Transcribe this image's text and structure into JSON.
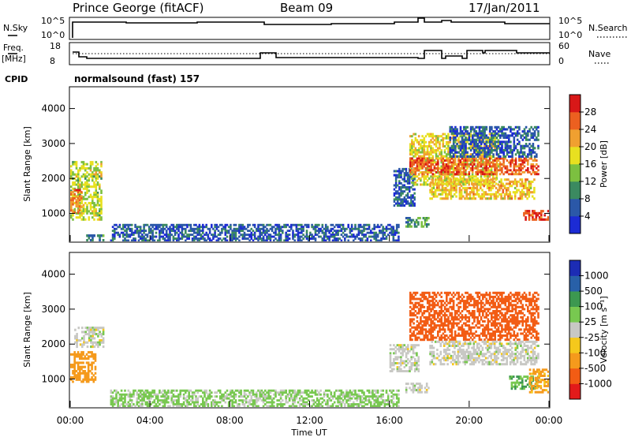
{
  "header": {
    "station": "Prince George (fitACF)",
    "beam": "Beam 09",
    "date": "17/Jan/2011"
  },
  "noise_panel": {
    "left_label": "N.Sky",
    "right_label": "N.Search",
    "left_ticks": [
      "10^5",
      "10^0"
    ],
    "right_ticks": [
      "10^5",
      "10^0"
    ]
  },
  "freq_panel": {
    "left_label_1": "Freq.",
    "left_label_2": "[MHz]",
    "right_label": "Nave",
    "left_ticks": [
      "18",
      "8"
    ],
    "right_ticks": [
      "60",
      "0"
    ]
  },
  "cpid": {
    "label": "CPID",
    "text": "normalsound (fast) 157"
  },
  "colorbars": {
    "power": {
      "label": "Power [dB]",
      "ticks": [
        "28",
        "24",
        "20",
        "16",
        "12",
        "8",
        "4"
      ]
    },
    "velocity": {
      "label": "Velocity [m s⁻¹]",
      "ticks": [
        "1000",
        "500",
        "100",
        "25",
        "-25",
        "-100",
        "-500",
        "-1000"
      ]
    }
  },
  "chart_data": [
    {
      "type": "heatmap",
      "name": "power",
      "ylabel": "Slant Range [km]",
      "xlabel": "",
      "ylim": [
        200,
        4600
      ],
      "yticks": [
        1000,
        2000,
        3000,
        4000
      ],
      "x_ticks": [
        "00:00",
        "04:00",
        "08:00",
        "12:00",
        "16:00",
        "20:00",
        "00:00"
      ],
      "xlim_hours": [
        0,
        24
      ],
      "colorbar": {
        "label": "Power [dB]",
        "range": [
          0,
          32
        ]
      },
      "regions": [
        {
          "t": [
            0.0,
            1.6
          ],
          "r": [
            800,
            2500
          ],
          "value": 16
        },
        {
          "t": [
            0.0,
            0.6
          ],
          "r": [
            1000,
            1700
          ],
          "value": 24
        },
        {
          "t": [
            0.8,
            1.7
          ],
          "r": [
            200,
            400
          ],
          "value": 8
        },
        {
          "t": [
            2.0,
            16.5
          ],
          "r": [
            200,
            700
          ],
          "value": 6
        },
        {
          "t": [
            16.2,
            17.3
          ],
          "r": [
            1200,
            2300
          ],
          "value": 6
        },
        {
          "t": [
            16.8,
            18.0
          ],
          "r": [
            600,
            900
          ],
          "value": 10
        },
        {
          "t": [
            17.0,
            21.5
          ],
          "r": [
            1800,
            3300
          ],
          "value": 18
        },
        {
          "t": [
            17.0,
            23.5
          ],
          "r": [
            2100,
            2600
          ],
          "value": 26
        },
        {
          "t": [
            18.0,
            23.3
          ],
          "r": [
            1400,
            2000
          ],
          "value": 20
        },
        {
          "t": [
            19.0,
            23.5
          ],
          "r": [
            2600,
            3500
          ],
          "value": 6
        },
        {
          "t": [
            22.7,
            24.0
          ],
          "r": [
            800,
            1100
          ],
          "value": 28
        }
      ]
    },
    {
      "type": "heatmap",
      "name": "velocity",
      "ylabel": "Slant Range [km]",
      "xlabel": "Time UT",
      "ylim": [
        200,
        4600
      ],
      "yticks": [
        1000,
        2000,
        3000,
        4000
      ],
      "x_ticks": [
        "00:00",
        "04:00",
        "08:00",
        "12:00",
        "16:00",
        "20:00",
        "00:00"
      ],
      "xlim_hours": [
        0,
        24
      ],
      "colorbar": {
        "label": "Velocity [m s⁻¹]",
        "range": [
          -1000,
          1000
        ]
      },
      "regions": [
        {
          "t": [
            0.0,
            1.3
          ],
          "r": [
            900,
            1800
          ],
          "value": -150
        },
        {
          "t": [
            0.2,
            1.7
          ],
          "r": [
            1900,
            2500
          ],
          "value": 0
        },
        {
          "t": [
            2.0,
            16.5
          ],
          "r": [
            200,
            700
          ],
          "value": 40
        },
        {
          "t": [
            16.0,
            17.5
          ],
          "r": [
            1200,
            2000
          ],
          "value": 0
        },
        {
          "t": [
            16.8,
            18.0
          ],
          "r": [
            600,
            900
          ],
          "value": 0
        },
        {
          "t": [
            17.0,
            23.5
          ],
          "r": [
            2100,
            3500
          ],
          "value": -700
        },
        {
          "t": [
            18.0,
            23.5
          ],
          "r": [
            1400,
            2100
          ],
          "value": 0
        },
        {
          "t": [
            22.0,
            23.5
          ],
          "r": [
            700,
            1100
          ],
          "value": 100
        },
        {
          "t": [
            23.0,
            24.0
          ],
          "r": [
            600,
            1300
          ],
          "value": -120
        }
      ]
    }
  ]
}
